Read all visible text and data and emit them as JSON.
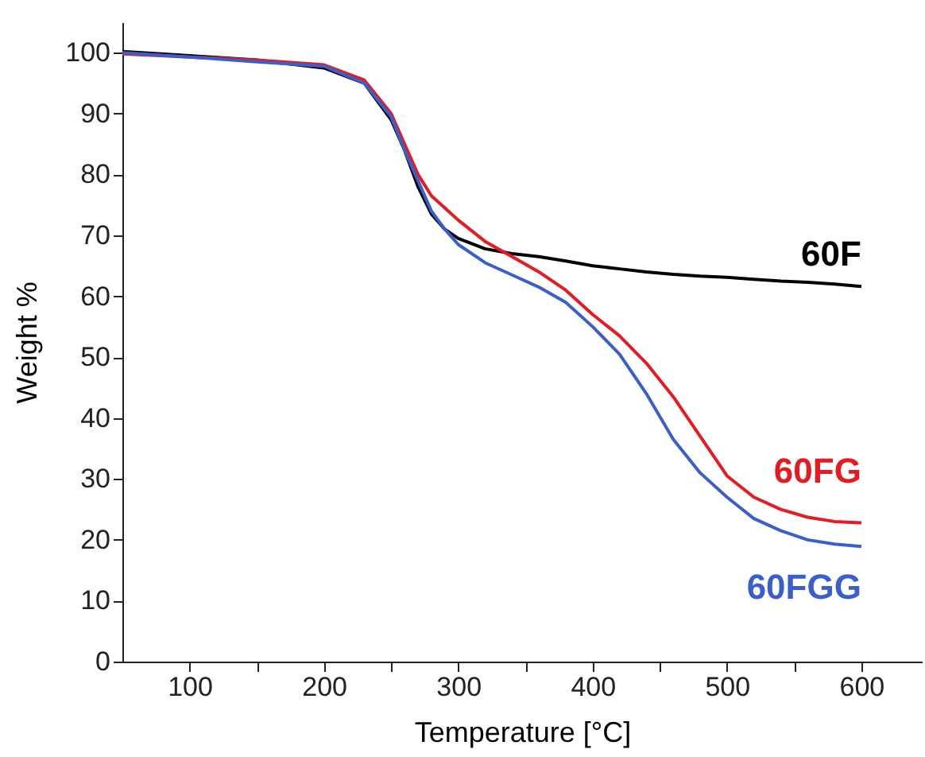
{
  "chart_data": {
    "type": "line",
    "xlabel": "Temperature [°C]",
    "ylabel": "Weight %",
    "xlim": [
      50,
      645
    ],
    "ylim": [
      0,
      105
    ],
    "xticks": [
      100,
      200,
      300,
      400,
      500,
      600,
      {
        "value": 150,
        "label": null
      },
      {
        "value": 250,
        "label": null
      },
      {
        "value": 350,
        "label": null
      },
      {
        "value": 450,
        "label": null
      },
      {
        "value": 550,
        "label": null
      }
    ],
    "yticks": [
      0,
      10,
      20,
      30,
      40,
      50,
      60,
      70,
      80,
      90,
      100
    ],
    "grid": false,
    "legend": false,
    "marker": "none",
    "line_style": "solid",
    "x": [
      50,
      100,
      150,
      200,
      230,
      250,
      260,
      270,
      280,
      290,
      300,
      320,
      340,
      360,
      380,
      400,
      420,
      440,
      460,
      480,
      500,
      520,
      540,
      560,
      580,
      600
    ],
    "series": [
      {
        "name": "60F",
        "color": "#000000",
        "values": [
          100.2,
          99.5,
          98.8,
          97.5,
          95,
          89,
          84,
          78,
          73.5,
          71,
          69.5,
          67.8,
          67,
          66.5,
          65.8,
          65,
          64.5,
          64,
          63.6,
          63.3,
          63.1,
          62.8,
          62.5,
          62.3,
          62,
          61.6
        ]
      },
      {
        "name": "60FG",
        "color": "#e8191f",
        "values": [
          99.8,
          99.3,
          98.8,
          98,
          95.5,
          90,
          85,
          80,
          76.5,
          74.5,
          72.5,
          69,
          66.5,
          64,
          61,
          57,
          53.5,
          49,
          43.5,
          37,
          30.5,
          27,
          25,
          23.7,
          23,
          22.8
        ]
      },
      {
        "name": "60FGG",
        "color": "#3a5fcd",
        "values": [
          100,
          99.3,
          98.5,
          97.8,
          95,
          89.5,
          84,
          79,
          74,
          71,
          68.5,
          65.5,
          63.5,
          61.5,
          59,
          55,
          50.5,
          44,
          36.5,
          31,
          27,
          23.5,
          21.5,
          20,
          19.3,
          18.9
        ]
      }
    ]
  }
}
